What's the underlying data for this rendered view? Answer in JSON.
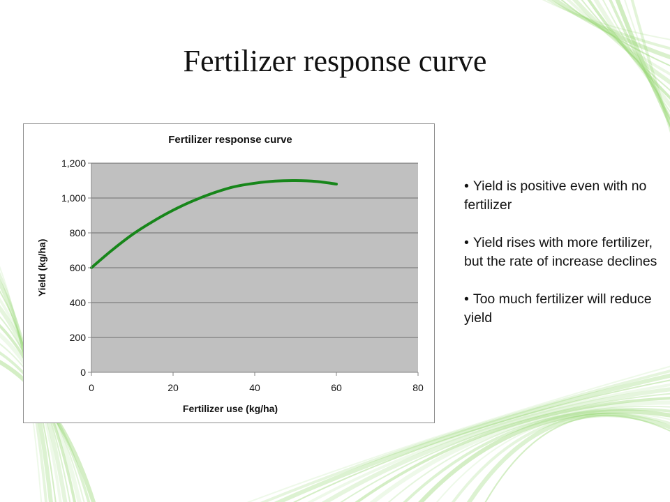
{
  "slide": {
    "title": "Fertilizer response curve",
    "bullets": [
      "Yield is positive even with no fertilizer",
      "Yield rises with more fertilizer, but the rate of increase declines",
      "Too much fertilizer will reduce yield"
    ],
    "colors": {
      "decor_green": "#8fd46a",
      "text": "#111111"
    }
  },
  "chart_data": {
    "type": "line",
    "title": "Fertilizer response curve",
    "xlabel": "Fertilizer use (kg/ha)",
    "ylabel": "Yield (kg/ha)",
    "xlim": [
      0,
      80
    ],
    "ylim": [
      0,
      1200
    ],
    "x_ticks": [
      "0",
      "20",
      "40",
      "60",
      "80"
    ],
    "y_ticks": [
      "0",
      "200",
      "400",
      "600",
      "800",
      "1,000",
      "1,200"
    ],
    "grid": "horizontal",
    "plot_background": "#c0c0c0",
    "series": [
      {
        "color": "#17861a",
        "x": [
          0,
          5,
          10,
          15,
          20,
          25,
          30,
          35,
          40,
          45,
          50,
          55,
          60
        ],
        "y": [
          600,
          700,
          790,
          865,
          930,
          985,
          1030,
          1065,
          1085,
          1097,
          1100,
          1095,
          1080
        ]
      }
    ]
  }
}
